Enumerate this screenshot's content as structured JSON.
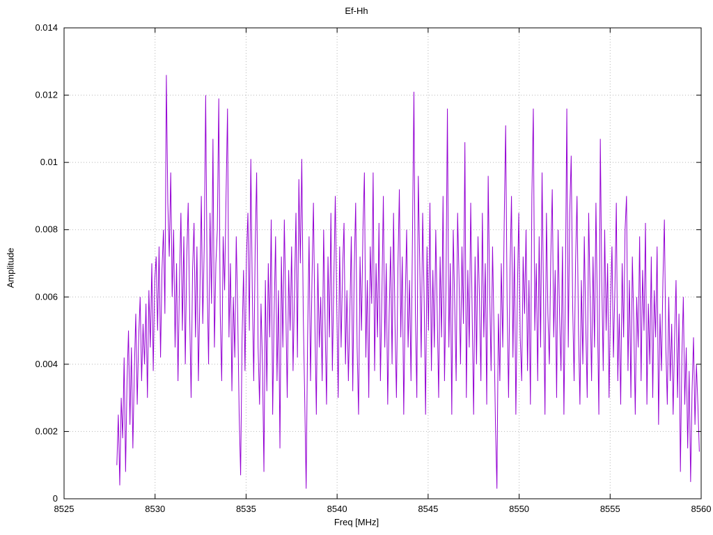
{
  "title": "Ef-Hh",
  "chart_data": {
    "type": "line",
    "title": "Ef-Hh",
    "xlabel": "Freq [MHz]",
    "ylabel": "Amplitude",
    "xlim": [
      8525,
      8560
    ],
    "ylim": [
      0,
      0.014
    ],
    "grid": true,
    "legend": "none",
    "line_color": "#9400d3",
    "grid_color": "#b5b5b5",
    "x_ticks": [
      8525,
      8530,
      8535,
      8540,
      8545,
      8550,
      8555,
      8560
    ],
    "x_tick_labels": [
      "8525",
      "8530",
      "8535",
      "8540",
      "8545",
      "8550",
      "8555",
      "8560"
    ],
    "y_ticks": [
      0,
      0.002,
      0.004,
      0.006,
      0.008,
      0.01,
      0.012,
      0.014
    ],
    "y_tick_labels": [
      "0",
      "0.002",
      "0.004",
      "0.006",
      "0.008",
      "0.01",
      "0.012",
      "0.014"
    ],
    "series": [
      {
        "name": "Ef-Hh",
        "x_start": 8527.9,
        "x_step": 0.08,
        "value_scale": 0.0001,
        "values": [
          10,
          25,
          4,
          30,
          18,
          42,
          8,
          35,
          50,
          22,
          45,
          15,
          38,
          55,
          28,
          48,
          60,
          35,
          52,
          40,
          58,
          30,
          62,
          45,
          70,
          38,
          65,
          72,
          50,
          75,
          42,
          68,
          80,
          55,
          126,
          88,
          72,
          97,
          60,
          80,
          45,
          70,
          35,
          65,
          85,
          50,
          78,
          40,
          72,
          88,
          55,
          30,
          68,
          82,
          48,
          75,
          35,
          60,
          90,
          52,
          75,
          120,
          65,
          40,
          85,
          58,
          107,
          45,
          70,
          80,
          119,
          55,
          35,
          78,
          62,
          90,
          116,
          48,
          70,
          32,
          60,
          42,
          78,
          55,
          25,
          7,
          48,
          68,
          38,
          72,
          85,
          50,
          101,
          62,
          35,
          75,
          97,
          45,
          28,
          58,
          40,
          8,
          65,
          32,
          70,
          48,
          83,
          25,
          55,
          78,
          35,
          62,
          15,
          72,
          45,
          83,
          58,
          30,
          68,
          50,
          75,
          38,
          62,
          85,
          42,
          95,
          70,
          101,
          55,
          30,
          3,
          48,
          78,
          35,
          65,
          88,
          52,
          25,
          70,
          45,
          60,
          35,
          80,
          52,
          28,
          72,
          48,
          85,
          38,
          65,
          90,
          58,
          30,
          75,
          45,
          68,
          82,
          40,
          62,
          35,
          55,
          78,
          32,
          68,
          88,
          45,
          25,
          72,
          50,
          80,
          97,
          42,
          65,
          30,
          75,
          58,
          97,
          38,
          70,
          48,
          82,
          35,
          60,
          90,
          45,
          70,
          28,
          55,
          75,
          40,
          85,
          52,
          30,
          68,
          92,
          48,
          72,
          25,
          58,
          80,
          45,
          65,
          35,
          78,
          121,
          55,
          30,
          96,
          70,
          42,
          85,
          60,
          25,
          75,
          50,
          88,
          38,
          68,
          45,
          80,
          55,
          30,
          72,
          48,
          90,
          35,
          62,
          116,
          45,
          70,
          25,
          80,
          58,
          35,
          85,
          65,
          40,
          75,
          52,
          106,
          30,
          68,
          45,
          88,
          55,
          25,
          72,
          40,
          78,
          60,
          35,
          85,
          48,
          70,
          28,
          96,
          62,
          38,
          75,
          50,
          22,
          3,
          55,
          35,
          70,
          45,
          82,
          111,
          58,
          30,
          68,
          90,
          42,
          75,
          25,
          60,
          85,
          48,
          35,
          72,
          55,
          80,
          38,
          65,
          28,
          90,
          116,
          50,
          70,
          35,
          78,
          45,
          97,
          60,
          25,
          85,
          55,
          40,
          72,
          92,
          48,
          68,
          30,
          80,
          55,
          38,
          75,
          25,
          62,
          116,
          45,
          85,
          102,
          58,
          35,
          70,
          90,
          50,
          28,
          65,
          40,
          78,
          52,
          30,
          85,
          60,
          35,
          72,
          45,
          88,
          55,
          25,
          107,
          65,
          38,
          80,
          50,
          70,
          30,
          58,
          75,
          42,
          62,
          88,
          35,
          55,
          28,
          70,
          48,
          80,
          90,
          38,
          65,
          30,
          72,
          52,
          25,
          60,
          45,
          78,
          35,
          68,
          50,
          82,
          28,
          58,
          40,
          72,
          30,
          62,
          48,
          75,
          22,
          55,
          38,
          65,
          83,
          45,
          28,
          60,
          35,
          52,
          25,
          48,
          65,
          30,
          55,
          8,
          42,
          60,
          28,
          45,
          15,
          38,
          5,
          32,
          48,
          22,
          40,
          28,
          14
        ]
      }
    ]
  }
}
